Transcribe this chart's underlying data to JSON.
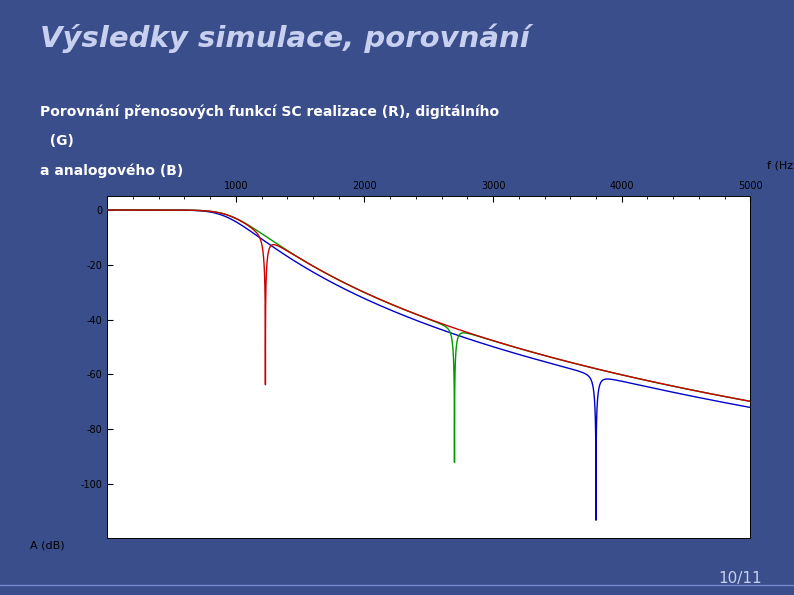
{
  "title": "Výsledky simulace, porovnání",
  "subtitle_line1": "Porovnání přenosových funkcí SC realizace (R), digitálního",
  "subtitle_line2": "  (G)",
  "subtitle_line3": "a analogového (B)",
  "xlabel": "f (Hz)",
  "ylabel": "A (dB)",
  "xlim": [
    0,
    5000
  ],
  "ylim": [
    -120,
    5
  ],
  "xticks": [
    1000,
    2000,
    3000,
    4000,
    5000
  ],
  "yticks": [
    0,
    -20,
    -40,
    -60,
    -80,
    -100
  ],
  "bg_slide": "#3a4e8c",
  "bg_plot": "#ffffff",
  "title_color": "#c8d0f0",
  "subtitle_color": "#ffffff",
  "page_number": "10/11",
  "colors": {
    "red": "#cc0000",
    "green": "#009900",
    "blue": "#0000cc"
  }
}
